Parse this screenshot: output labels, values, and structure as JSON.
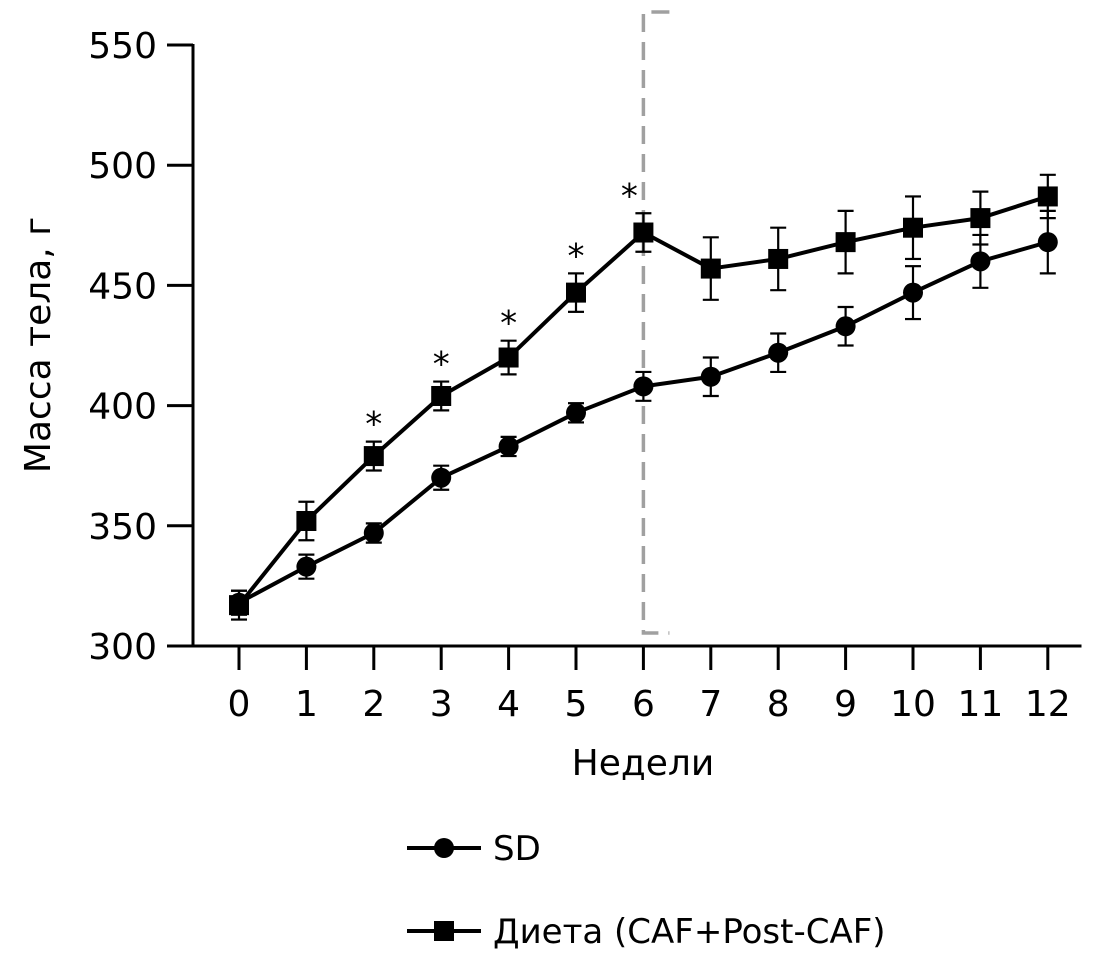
{
  "chart_data": {
    "type": "line",
    "title": "",
    "xlabel": "Недели",
    "ylabel": "Масса тела, г",
    "x": [
      0,
      1,
      2,
      3,
      4,
      5,
      6,
      7,
      8,
      9,
      10,
      11,
      12
    ],
    "x_tick_labels": [
      "0",
      "1",
      "2",
      "3",
      "4",
      "5",
      "6",
      "7",
      "8",
      "9",
      "10",
      "11",
      "12"
    ],
    "xlim": [
      -0.5,
      12.5
    ],
    "ylim": [
      300,
      550
    ],
    "y_ticks": [
      300,
      350,
      400,
      450,
      500,
      550
    ],
    "y_tick_labels": [
      "300",
      "350",
      "400",
      "450",
      "500",
      "550"
    ],
    "grid": false,
    "series": [
      {
        "name": "SD",
        "marker": "circle",
        "values": [
          318,
          333,
          347,
          370,
          383,
          397,
          408,
          412,
          422,
          433,
          447,
          460,
          468
        ],
        "errors": [
          5,
          5,
          4,
          5,
          4,
          4,
          6,
          8,
          8,
          8,
          11,
          11,
          13
        ]
      },
      {
        "name": "Диета (CAF+Post-CAF)",
        "marker": "square",
        "values": [
          317,
          352,
          379,
          404,
          420,
          447,
          472,
          457,
          461,
          468,
          474,
          478,
          487
        ],
        "errors": [
          6,
          8,
          6,
          6,
          7,
          8,
          8,
          13,
          13,
          13,
          13,
          11,
          9
        ]
      }
    ],
    "significance": {
      "symbol": "*",
      "x": [
        2,
        3,
        4,
        5,
        6
      ]
    },
    "phase_marker": {
      "x": 6,
      "style": "dashed",
      "color": "#a0a0a0"
    },
    "legend_position": "bottom-center"
  }
}
